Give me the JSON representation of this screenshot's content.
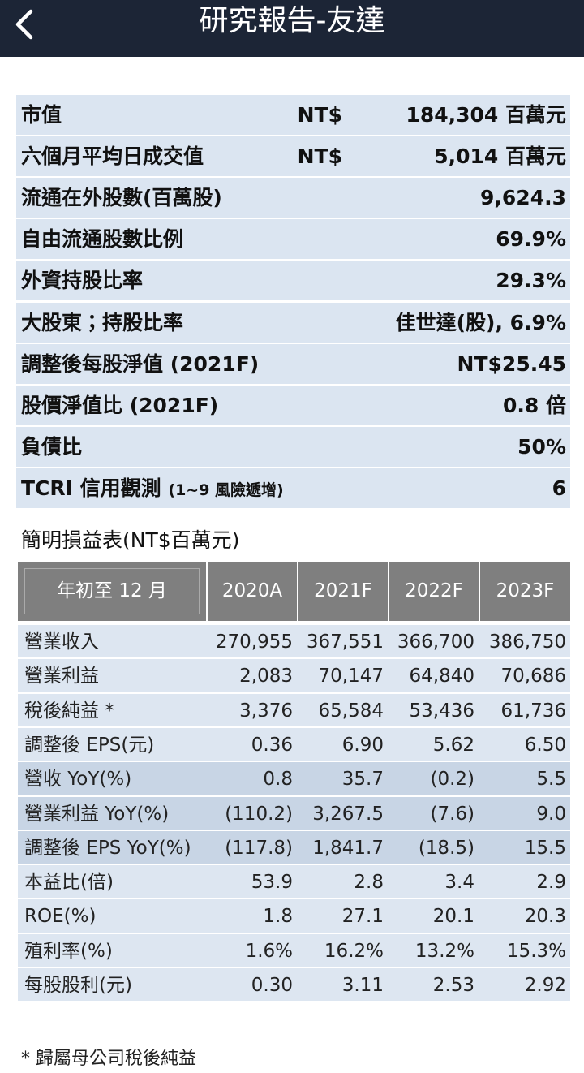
{
  "header": {
    "title": "研究報告-友達"
  },
  "info": {
    "rows": [
      {
        "label": "市值",
        "currency": "NT$",
        "value": "184,304 百萬元"
      },
      {
        "label": "六個月平均日成交值",
        "currency": "NT$",
        "value": "5,014 百萬元"
      },
      {
        "label": "流通在外股數(百萬股)",
        "value": "9,624.3"
      },
      {
        "label": "自由流通股數比例",
        "value": "69.9%"
      },
      {
        "label": "外資持股比率",
        "value": "29.3%"
      },
      {
        "label": "大股東；持股比率",
        "value": "佳世達(股), 6.9%"
      },
      {
        "label": "調整後每股淨值 (2021F)",
        "value": "NT$25.45"
      },
      {
        "label": "股價淨值比 (2021F)",
        "value": "0.8 倍"
      },
      {
        "label": "負債比",
        "value": "50%"
      },
      {
        "label": "TCRI 信用觀測",
        "note": "(1~9 風險遞增)",
        "value": "6"
      }
    ]
  },
  "income": {
    "title": "簡明損益表(NT$百萬元)",
    "header": [
      "年初至 12 月",
      "2020A",
      "2021F",
      "2022F",
      "2023F"
    ],
    "rows": [
      [
        "營業收入",
        "270,955",
        "367,551",
        "366,700",
        "386,750"
      ],
      [
        "營業利益",
        "2,083",
        "70,147",
        "64,840",
        "70,686"
      ],
      [
        "稅後純益 *",
        "3,376",
        "65,584",
        "53,436",
        "61,736"
      ],
      [
        "調整後 EPS(元)",
        "0.36",
        "6.90",
        "5.62",
        "6.50"
      ],
      [
        "營收 YoY(%)",
        "0.8",
        "35.7",
        "(0.2)",
        "5.5"
      ],
      [
        "營業利益 YoY(%)",
        "(110.2)",
        "3,267.5",
        "(7.6)",
        "9.0"
      ],
      [
        "調整後 EPS YoY(%)",
        "(117.8)",
        "1,841.7",
        "(18.5)",
        "15.5"
      ],
      [
        "本益比(倍)",
        "53.9",
        "2.8",
        "3.4",
        "2.9"
      ],
      [
        "ROE(%)",
        "1.8",
        "27.1",
        "20.1",
        "20.3"
      ],
      [
        "殖利率(%)",
        "1.6%",
        "16.2%",
        "13.2%",
        "15.3%"
      ],
      [
        "每股股利(元)",
        "0.30",
        "3.11",
        "2.53",
        "2.92"
      ]
    ],
    "footnote": "* 歸屬母公司稅後純益"
  }
}
